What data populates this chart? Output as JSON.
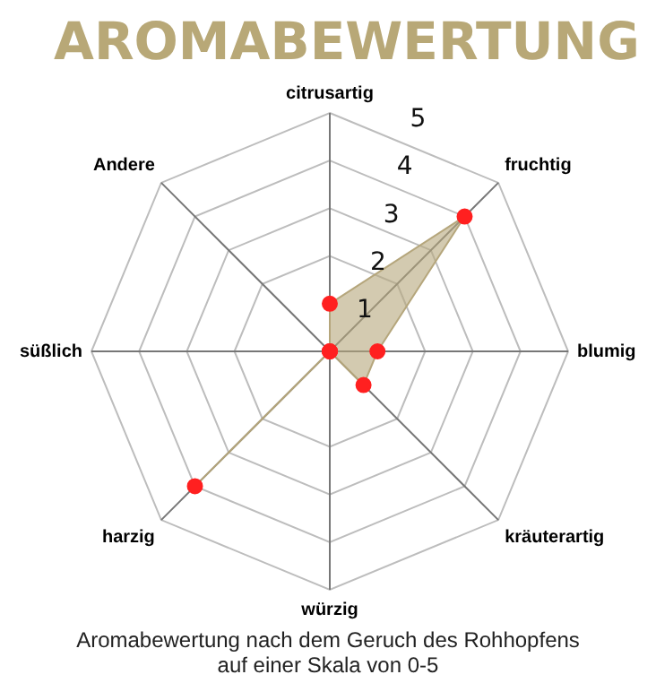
{
  "chart_data": {
    "type": "radar",
    "title": "AROMABEWERTUNG",
    "categories": [
      "citrusartig",
      "fruchtig",
      "blumig",
      "kräuterartig",
      "würzig",
      "harzig",
      "süßlich",
      "Andere"
    ],
    "series": [
      {
        "color": "#b5a67c",
        "values": [
          1,
          4,
          1,
          1,
          0,
          4,
          0,
          0
        ]
      }
    ],
    "ylim": [
      0,
      5
    ],
    "yticks": [
      1,
      2,
      3,
      4,
      5
    ],
    "grid": true,
    "legend": false,
    "marker": "circle",
    "annotations": [
      "Aromabewertung nach dem Geruch des Rohhopfens auf einer Skala von 0-5"
    ]
  }
}
